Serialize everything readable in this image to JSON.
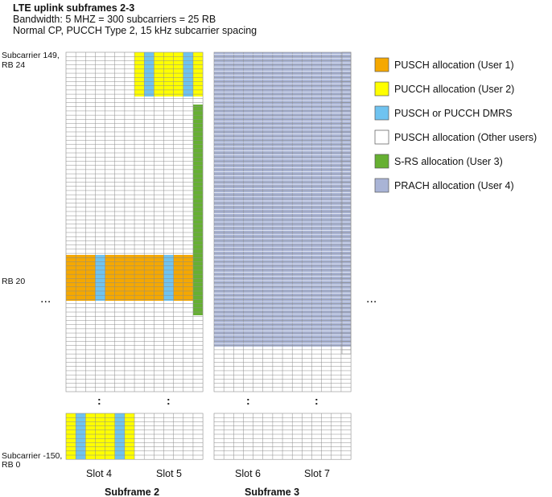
{
  "header": {
    "title": "LTE uplink subframes 2-3",
    "line1": "Bandwidth: 5 MHZ = 300 subcarriers = 25 RB",
    "line2": "Normal CP, PUCCH Type 2, 15 kHz subcarrier spacing"
  },
  "labels": {
    "top_subcarrier": "Subcarrier 149,",
    "top_rb": "RB 24",
    "rb20": "RB 20",
    "bottom_subcarrier": "Subcarrier -150,",
    "bottom_rb": "RB 0",
    "ellipsis_left": "...",
    "ellipsis_right": "...",
    "vdots": ":"
  },
  "slots": [
    "Slot 4",
    "Slot 5",
    "Slot 6",
    "Slot 7"
  ],
  "subframes": [
    "Subframe 2",
    "Subframe 3"
  ],
  "colors": {
    "pusch_user1": "#f5a800",
    "pucch_user2": "#ffff00",
    "dmrs": "#6fc3f0",
    "pusch_other": "#ffffff",
    "srs_user3": "#66b032",
    "prach_user4": "#a9b4d6",
    "grid_line": "#8c8c8c"
  },
  "legend": [
    {
      "key": "pusch_user1",
      "label": "PUSCH allocation (User 1)"
    },
    {
      "key": "pucch_user2",
      "label": "PUCCH allocation (User 2)"
    },
    {
      "key": "dmrs",
      "label": "PUSCH or PUCCH DMRS"
    },
    {
      "key": "pusch_other",
      "label": "PUSCH allocation (Other users)"
    },
    {
      "key": "srs_user3",
      "label": "S-RS allocation (User 3)"
    },
    {
      "key": "prach_user4",
      "label": "PRACH allocation  (User 4)"
    }
  ]
}
